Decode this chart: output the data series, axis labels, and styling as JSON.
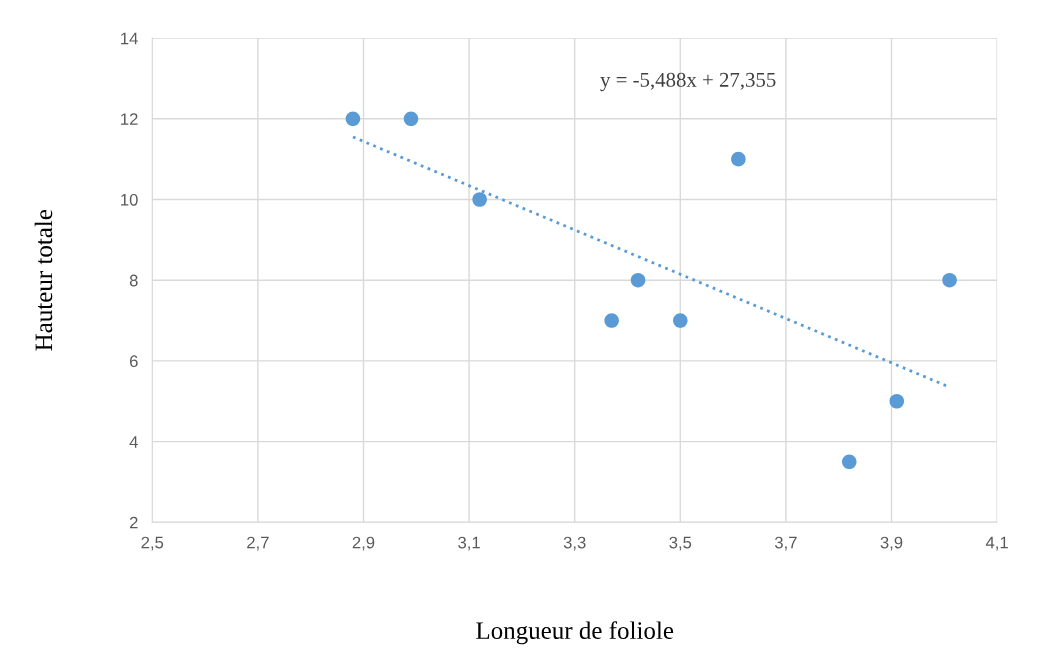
{
  "chart_data": {
    "type": "scatter",
    "xlabel": "Longueur de foliole",
    "ylabel": "Hauteur totale",
    "series": [
      {
        "marker": "circle",
        "color": "#5b9bd5",
        "x": [
          2.88,
          2.99,
          3.12,
          3.37,
          3.42,
          3.5,
          3.61,
          3.82,
          3.91,
          4.01
        ],
        "values": [
          12,
          12,
          10,
          7,
          8,
          7,
          11,
          3.5,
          5,
          8
        ]
      },
      {
        "type": "line",
        "marker": "none",
        "color": "#5b9bd5",
        "line_style": "dotted",
        "x": [
          2.88,
          4.01
        ],
        "values": [
          11.55,
          5.35
        ]
      }
    ],
    "annotations": [
      "y = -5,488x + 27,355"
    ],
    "xlim": [
      2.5,
      4.1
    ],
    "xticks": [
      {
        "value": 2.5,
        "label": "2,5"
      },
      {
        "value": 2.7,
        "label": "2,7"
      },
      {
        "value": 2.9,
        "label": "2,9"
      },
      {
        "value": 3.1,
        "label": "3,1"
      },
      {
        "value": 3.3,
        "label": "3,3"
      },
      {
        "value": 3.5,
        "label": "3,5"
      },
      {
        "value": 3.7,
        "label": "3,7"
      },
      {
        "value": 3.9,
        "label": "3,9"
      },
      {
        "value": 4.1,
        "label": "4,1"
      }
    ],
    "ylim": [
      2,
      14
    ],
    "yticks": [
      2,
      4,
      6,
      8,
      10,
      12,
      14
    ],
    "grid": true
  }
}
